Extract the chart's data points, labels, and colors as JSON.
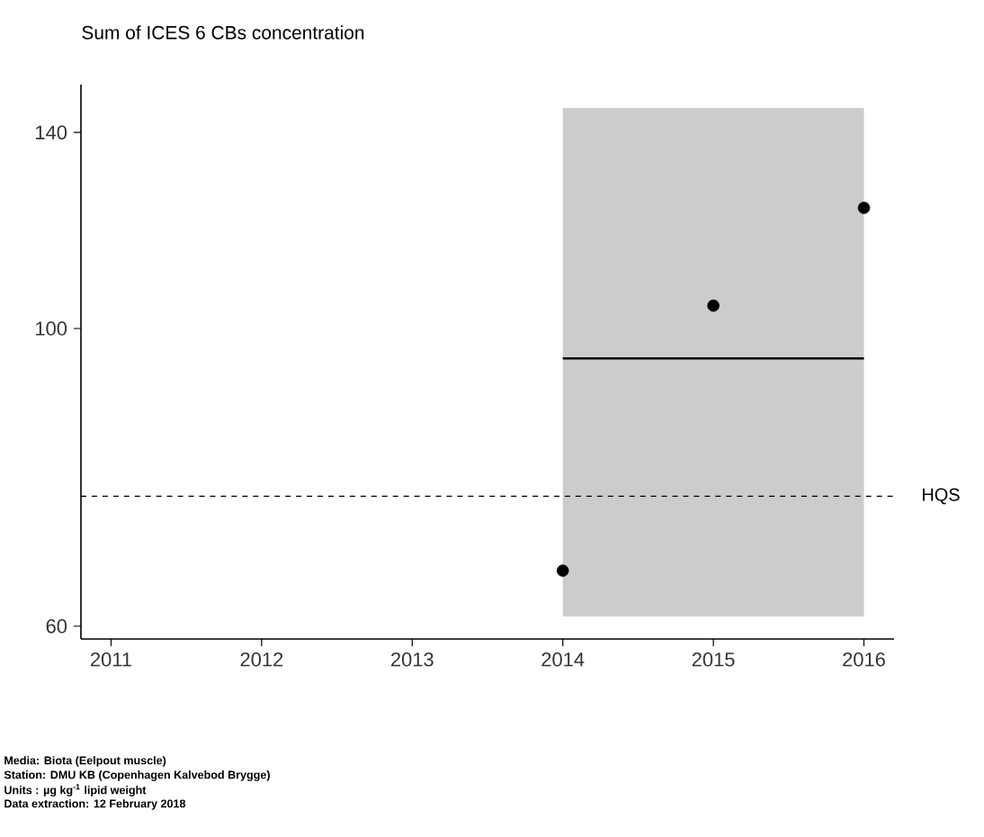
{
  "chart_data": {
    "type": "scatter",
    "title": "Sum of ICES 6 CBs concentration",
    "xlim": [
      2010.8,
      2016.2
    ],
    "xticks": [
      2011,
      2012,
      2013,
      2014,
      2015,
      2016
    ],
    "ylim": [
      58.7,
      152
    ],
    "yticks": [
      60,
      100,
      140
    ],
    "log": true,
    "series": [
      {
        "color": "#000000",
        "marker": "circle",
        "x": [
          2014,
          2015,
          2016
        ],
        "values": [
          66,
          104,
          123
        ]
      },
      {
        "type": "line",
        "color": "#000000",
        "marker": "none",
        "x": [
          2014,
          2016
        ],
        "values": [
          95,
          95
        ],
        "lower": [
          61,
          61
        ],
        "upper": [
          146,
          146
        ]
      }
    ],
    "ref_lines": [
      {
        "axis": "y",
        "value": 75,
        "label": "HQS",
        "line_style": "dashed",
        "color": "#000000"
      }
    ],
    "annotations": [
      "Media: Biota (Eelpout muscle)",
      "Station: DMU KB (Copenhagen Kalvebod Brygge)",
      "Units : µg kg$^{-1}$ lipid weight",
      "Data extraction: 12 February 2018"
    ]
  }
}
